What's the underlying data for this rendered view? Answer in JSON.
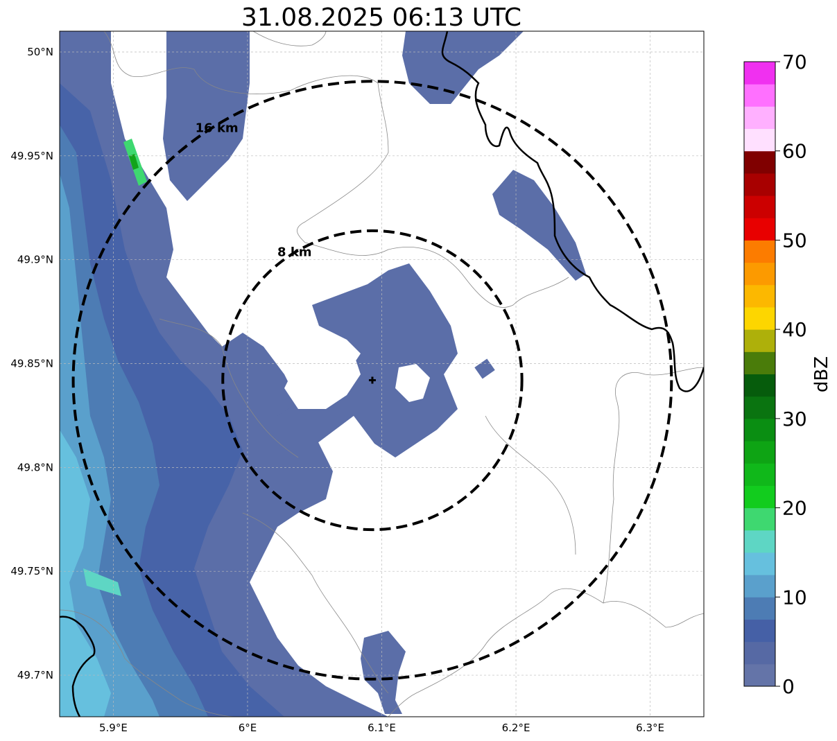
{
  "title": "31.08.2025 06:13 UTC",
  "map": {
    "lon_range": [
      5.86,
      6.34
    ],
    "lat_range": [
      49.68,
      50.01
    ],
    "lon_ticks": [
      {
        "value": 5.9,
        "label": "5.9°E"
      },
      {
        "value": 6.0,
        "label": "6°E"
      },
      {
        "value": 6.1,
        "label": "6.1°E"
      },
      {
        "value": 6.2,
        "label": "6.2°E"
      },
      {
        "value": 6.3,
        "label": "6.3°E"
      }
    ],
    "lat_ticks": [
      {
        "value": 50.0,
        "label": "50°N"
      },
      {
        "value": 49.95,
        "label": "49.95°N"
      },
      {
        "value": 49.9,
        "label": "49.9°N"
      },
      {
        "value": 49.85,
        "label": "49.85°N"
      },
      {
        "value": 49.8,
        "label": "49.8°N"
      },
      {
        "value": 49.75,
        "label": "49.75°N"
      },
      {
        "value": 49.7,
        "label": "49.7°N"
      }
    ],
    "gridlines": true,
    "radar_site": {
      "lon": 6.093,
      "lat": 49.842
    },
    "range_rings": [
      {
        "label": "8 km",
        "radius_km": 8
      },
      {
        "label": "16 km",
        "radius_km": 16
      }
    ]
  },
  "colorbar": {
    "label": "dBZ",
    "min": 0,
    "max": 70,
    "ticks": [
      "0",
      "10",
      "20",
      "30",
      "40",
      "50",
      "60",
      "70"
    ],
    "colors": [
      "#6474a8",
      "#5669a4",
      "#4560a6",
      "#4d7cb4",
      "#5aa0cc",
      "#66c0de",
      "#5ed6c4",
      "#3ed870",
      "#12cc1e",
      "#10b81a",
      "#0ea414",
      "#0a8e12",
      "#0a7410",
      "#065c0c",
      "#4a7c0a",
      "#aeb00a",
      "#fdd600",
      "#fcb800",
      "#fc9a00",
      "#fc7c00",
      "#e80000",
      "#cc0000",
      "#a80000",
      "#800000",
      "#ffe0ff",
      "#ffb0ff",
      "#ff70ff",
      "#f030f0"
    ]
  }
}
